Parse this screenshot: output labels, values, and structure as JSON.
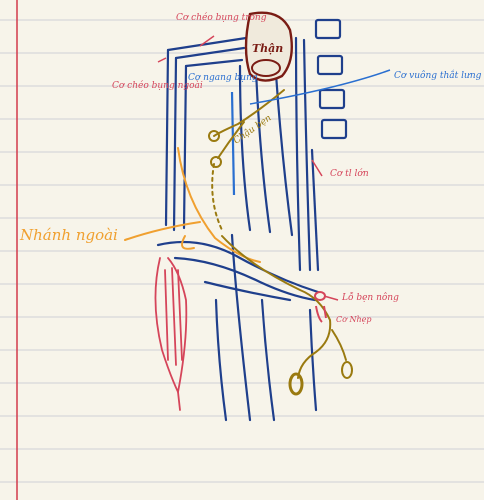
{
  "colors": {
    "paper": "#f7f4ea",
    "rule_line": "#cfcfd6",
    "margin_line": "#d23a4a",
    "muscle_blue": "#1f3f8c",
    "label_red": "#d5455a",
    "label_blue": "#2a6fd0",
    "orange": "#f0a030",
    "olive": "#9a7a10",
    "kidney": "#7a1c14"
  },
  "labels": {
    "co_cheo_bung_trong": "Cơ chéo bụng trong",
    "co_cheo_bung_ngoai": "Cơ chéo bụng ngoài",
    "co_ngang_bung": "Cơ ngang bụng",
    "than": "Thận",
    "co_vuong_that_lung": "Cơ vuông thắt lưng",
    "chau_be": "Chậu bẹn",
    "co_that_lon": "Cơ tl lớn",
    "nhanh_ngoai": "Nhánh ngoài",
    "lo_ben_nong": "Lỗ bẹn nông",
    "co_nhep": "Cơ Nhẹp"
  }
}
